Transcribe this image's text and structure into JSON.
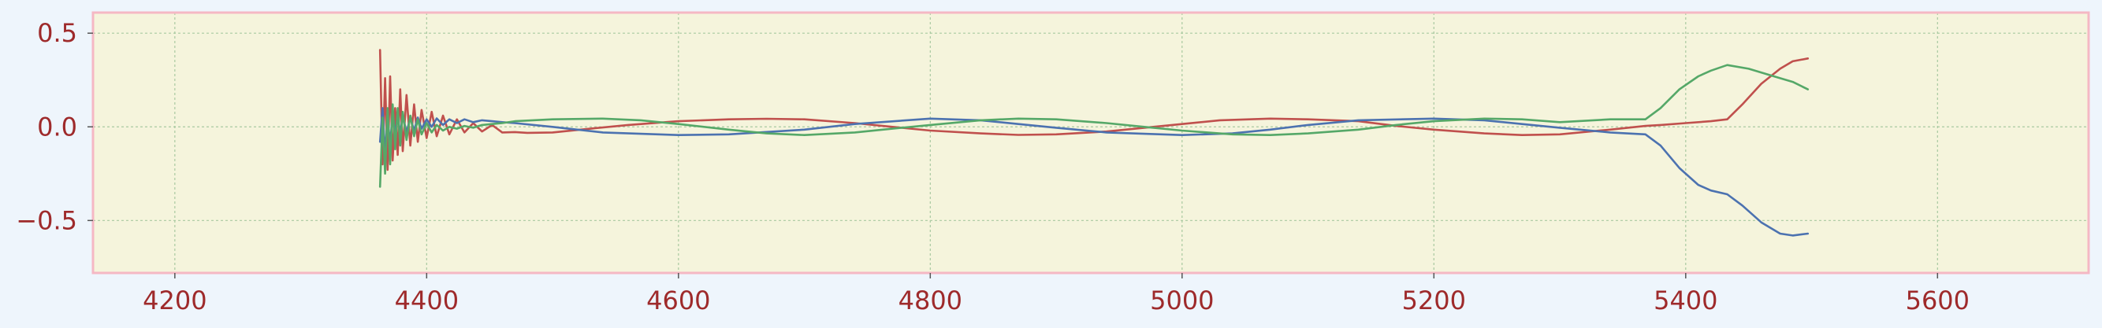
{
  "chart_data": {
    "type": "line",
    "title": "",
    "xlabel": "",
    "ylabel": "",
    "xlim": [
      4135,
      5720
    ],
    "ylim": [
      -0.78,
      0.61
    ],
    "xticks": [
      4200,
      4400,
      4600,
      4800,
      5000,
      5200,
      5400,
      5600
    ],
    "yticks": [
      0.5,
      0.0,
      -0.5
    ],
    "xtick_labels": [
      "4200",
      "4400",
      "4600",
      "4800",
      "5000",
      "5200",
      "5400",
      "5600"
    ],
    "ytick_labels": [
      "0.5",
      "0.0",
      "−0.5"
    ],
    "grid": true,
    "legend": "none",
    "colors": {
      "figure_bg": "#eef5fc",
      "plot_bg": "#f5f4dc",
      "frame": "#f5b8c4",
      "grid": "#a8c9a0",
      "tick_text": "#9e2a2b"
    },
    "series": [
      {
        "color": "#c0504d",
        "x": [
          4363,
          4365,
          4367,
          4369,
          4371,
          4373,
          4375,
          4377,
          4379,
          4381,
          4384,
          4387,
          4390,
          4393,
          4396,
          4400,
          4404,
          4408,
          4413,
          4418,
          4424,
          4430,
          4437,
          4444,
          4452,
          4460,
          4470,
          4480,
          4500,
          4530,
          4560,
          4600,
          4640,
          4670,
          4700,
          4740,
          4770,
          4800,
          4840,
          4870,
          4900,
          4940,
          4970,
          5000,
          5030,
          5070,
          5100,
          5140,
          5170,
          5200,
          5240,
          5270,
          5300,
          5340,
          5368,
          5380,
          5400,
          5420,
          5433,
          5445,
          5460,
          5475,
          5485,
          5497
        ],
        "y": [
          0.41,
          -0.2,
          0.26,
          -0.23,
          0.27,
          -0.18,
          0.1,
          -0.15,
          0.2,
          -0.13,
          0.17,
          -0.1,
          0.12,
          -0.08,
          0.09,
          -0.06,
          0.08,
          -0.05,
          0.06,
          -0.04,
          0.04,
          -0.03,
          0.02,
          -0.025,
          0.01,
          -0.03,
          -0.028,
          -0.032,
          -0.03,
          -0.01,
          0.01,
          0.03,
          0.04,
          0.043,
          0.04,
          0.02,
          0.0,
          -0.02,
          -0.035,
          -0.043,
          -0.04,
          -0.025,
          -0.005,
          0.015,
          0.035,
          0.044,
          0.04,
          0.03,
          0.005,
          -0.015,
          -0.035,
          -0.044,
          -0.04,
          -0.015,
          0.005,
          0.01,
          0.02,
          0.03,
          0.04,
          0.12,
          0.23,
          0.31,
          0.35,
          0.365
        ]
      },
      {
        "color": "#4c72b0",
        "x": [
          4363,
          4365,
          4367,
          4369,
          4371,
          4373,
          4375,
          4377,
          4379,
          4381,
          4384,
          4387,
          4390,
          4393,
          4396,
          4400,
          4404,
          4408,
          4413,
          4418,
          4424,
          4430,
          4437,
          4444,
          4452,
          4460,
          4470,
          4500,
          4540,
          4600,
          4640,
          4700,
          4740,
          4800,
          4840,
          4870,
          4900,
          4940,
          5000,
          5040,
          5070,
          5100,
          5140,
          5200,
          5240,
          5270,
          5300,
          5340,
          5368,
          5380,
          5395,
          5410,
          5420,
          5433,
          5445,
          5460,
          5475,
          5485,
          5497
        ],
        "y": [
          -0.08,
          0.1,
          -0.15,
          0.06,
          -0.1,
          0.08,
          -0.05,
          0.07,
          -0.04,
          0.06,
          -0.03,
          0.05,
          -0.02,
          0.05,
          -0.01,
          0.04,
          0.0,
          0.045,
          0.01,
          0.04,
          0.02,
          0.04,
          0.025,
          0.035,
          0.03,
          0.025,
          0.02,
          0.0,
          -0.03,
          -0.044,
          -0.04,
          -0.015,
          0.015,
          0.044,
          0.035,
          0.015,
          -0.005,
          -0.03,
          -0.044,
          -0.035,
          -0.015,
          0.01,
          0.035,
          0.044,
          0.035,
          0.015,
          -0.005,
          -0.03,
          -0.04,
          -0.1,
          -0.22,
          -0.31,
          -0.34,
          -0.36,
          -0.42,
          -0.51,
          -0.57,
          -0.58,
          -0.57
        ]
      },
      {
        "color": "#55a868",
        "x": [
          4363,
          4365,
          4367,
          4369,
          4371,
          4373,
          4375,
          4377,
          4379,
          4381,
          4384,
          4387,
          4390,
          4393,
          4396,
          4400,
          4404,
          4408,
          4413,
          4418,
          4424,
          4430,
          4437,
          4444,
          4452,
          4460,
          4470,
          4500,
          4540,
          4570,
          4600,
          4640,
          4670,
          4700,
          4740,
          4770,
          4800,
          4840,
          4870,
          4900,
          4940,
          4970,
          5000,
          5040,
          5070,
          5100,
          5140,
          5170,
          5200,
          5240,
          5270,
          5300,
          5340,
          5368,
          5380,
          5395,
          5410,
          5420,
          5433,
          5450,
          5470,
          5485,
          5497
        ],
        "y": [
          -0.32,
          0.05,
          -0.25,
          0.1,
          -0.2,
          0.12,
          -0.12,
          0.1,
          -0.1,
          0.08,
          -0.07,
          0.06,
          -0.05,
          0.04,
          -0.04,
          0.02,
          -0.03,
          0.01,
          -0.02,
          0.0,
          -0.01,
          0.005,
          -0.005,
          0.01,
          0.015,
          0.02,
          0.03,
          0.04,
          0.044,
          0.035,
          0.015,
          -0.015,
          -0.035,
          -0.044,
          -0.03,
          -0.01,
          0.01,
          0.035,
          0.044,
          0.04,
          0.02,
          0.0,
          -0.02,
          -0.04,
          -0.044,
          -0.035,
          -0.015,
          0.01,
          0.03,
          0.044,
          0.04,
          0.025,
          0.04,
          0.04,
          0.1,
          0.2,
          0.27,
          0.3,
          0.33,
          0.31,
          0.27,
          0.24,
          0.2
        ]
      }
    ]
  }
}
